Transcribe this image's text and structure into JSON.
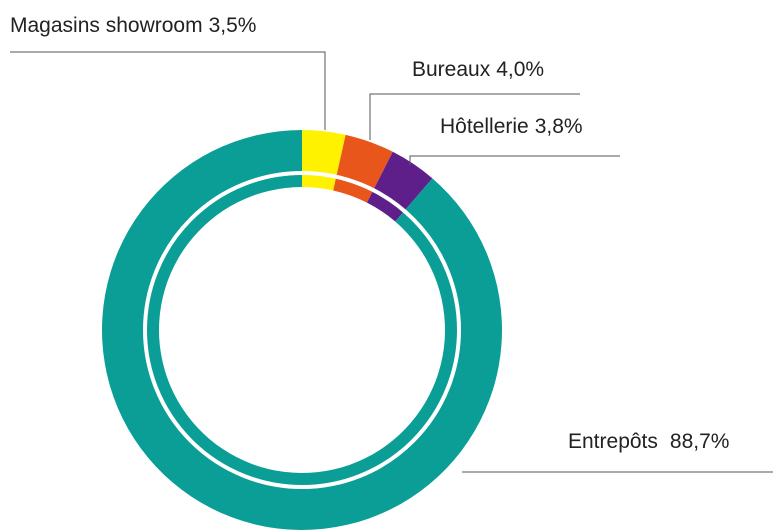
{
  "chart_data": {
    "type": "donut",
    "categories": [
      "Magasins showroom",
      "Bureaux",
      "Hôtellerie",
      "Entrepôts"
    ],
    "values": [
      3.5,
      4.0,
      3.8,
      88.7
    ],
    "value_labels": [
      "3,5%",
      "4,0%",
      "3,8%",
      "88,7%"
    ],
    "colors": [
      "#fff200",
      "#e8561b",
      "#5e1f8a",
      "#0a9e96"
    ]
  }
}
